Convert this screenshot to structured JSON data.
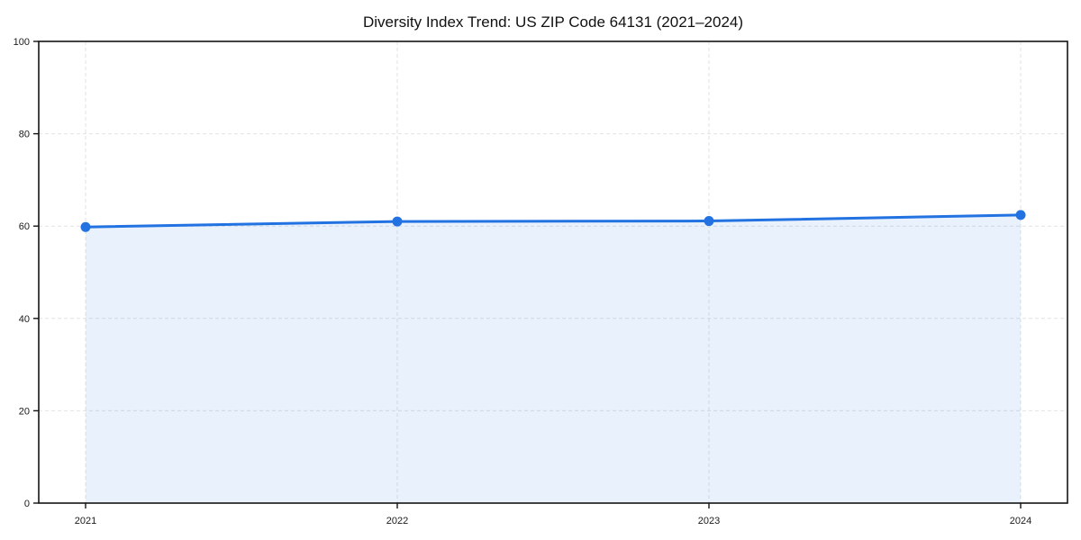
{
  "chart_data": {
    "type": "area",
    "title": "Diversity Index Trend: US ZIP Code 64131 (2021–2024)",
    "categories": [
      "2021",
      "2022",
      "2023",
      "2024"
    ],
    "series": [
      {
        "name": "Diversity Index",
        "values": [
          59.8,
          61.0,
          61.1,
          62.4
        ]
      }
    ],
    "xlabel": "",
    "ylabel": "",
    "ylim": [
      0,
      100
    ],
    "yticks": [
      0,
      20,
      40,
      60,
      80,
      100
    ],
    "grid": true,
    "grid_style": "dashed",
    "legend": "none",
    "colors": {
      "line": "#2272e2",
      "marker": "#2272e2",
      "fill": "rgba(34, 114, 226, 0.10)",
      "grid": "#e2e2e2",
      "spine": "#141414",
      "tick": "#141414",
      "tick_label": "#1a1a1a",
      "title": "#111111",
      "background": "#ffffff"
    }
  }
}
